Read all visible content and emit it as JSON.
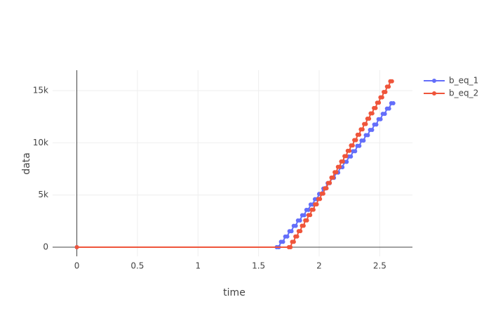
{
  "chart_data": {
    "type": "line",
    "xlabel": "time",
    "ylabel": "data",
    "xlim": [
      -0.2,
      2.77
    ],
    "ylim": [
      -875,
      16960
    ],
    "xticks": [
      0,
      0.5,
      1,
      1.5,
      2,
      2.5
    ],
    "yticks": [
      0,
      {
        "value": 5000,
        "label": "5k"
      },
      {
        "value": 10000,
        "label": "10k"
      },
      {
        "value": 15000,
        "label": "15k"
      }
    ],
    "grid": true,
    "legend": "right",
    "series": [
      {
        "name": "b_eq_1",
        "color": "#636efa",
        "x": [
          0,
          1.65,
          1.667,
          1.685,
          1.702,
          1.72,
          1.737,
          1.755,
          1.772,
          1.79,
          1.807,
          1.825,
          1.842,
          1.86,
          1.877,
          1.895,
          1.912,
          1.93,
          1.947,
          1.965,
          1.982,
          2.0,
          2.017,
          2.035,
          2.052,
          2.07,
          2.087,
          2.105,
          2.122,
          2.14,
          2.157,
          2.175,
          2.192,
          2.21,
          2.227,
          2.245,
          2.262,
          2.28,
          2.297,
          2.315,
          2.332,
          2.35,
          2.367,
          2.385,
          2.402,
          2.42,
          2.437,
          2.455,
          2.472,
          2.49,
          2.507,
          2.525,
          2.542,
          2.56,
          2.577,
          2.595,
          2.612
        ],
        "values": [
          0,
          0,
          0,
          511,
          511,
          1022,
          1022,
          1533,
          1533,
          2044,
          2044,
          2555,
          2555,
          3066,
          3066,
          3577,
          3577,
          4088,
          4088,
          4599,
          4599,
          5110,
          5110,
          5621,
          5621,
          6132,
          6132,
          6643,
          6643,
          7154,
          7154,
          7665,
          7665,
          8176,
          8176,
          8687,
          8687,
          9198,
          9198,
          9709,
          9709,
          10220,
          10220,
          10731,
          10731,
          11242,
          11242,
          11753,
          11753,
          12264,
          12264,
          12775,
          12775,
          13286,
          13286,
          13797,
          13797
        ]
      },
      {
        "name": "b_eq_2",
        "color": "#ef553b",
        "x": [
          0,
          1.75,
          1.764,
          1.777,
          1.791,
          1.804,
          1.818,
          1.831,
          1.845,
          1.858,
          1.872,
          1.885,
          1.899,
          1.912,
          1.926,
          1.939,
          1.953,
          1.966,
          1.98,
          1.993,
          2.007,
          2.02,
          2.034,
          2.047,
          2.061,
          2.074,
          2.088,
          2.101,
          2.115,
          2.128,
          2.142,
          2.155,
          2.169,
          2.182,
          2.196,
          2.209,
          2.223,
          2.236,
          2.25,
          2.263,
          2.277,
          2.29,
          2.304,
          2.317,
          2.331,
          2.344,
          2.358,
          2.371,
          2.385,
          2.398,
          2.412,
          2.425,
          2.439,
          2.452,
          2.466,
          2.479,
          2.493,
          2.506,
          2.52,
          2.533,
          2.547,
          2.56,
          2.574,
          2.587,
          2.601
        ],
        "values": [
          0,
          0,
          0,
          513,
          513,
          1026,
          1026,
          1539,
          1539,
          2052,
          2052,
          2565,
          2565,
          3078,
          3078,
          3591,
          3591,
          4104,
          4104,
          4617,
          4617,
          5130,
          5130,
          5643,
          5643,
          6156,
          6156,
          6669,
          6669,
          7182,
          7182,
          7695,
          7695,
          8208,
          8208,
          8721,
          8721,
          9234,
          9234,
          9747,
          9747,
          10260,
          10260,
          10773,
          10773,
          11286,
          11286,
          11799,
          11799,
          12312,
          12312,
          12825,
          12825,
          13338,
          13338,
          13851,
          13851,
          14364,
          14364,
          14877,
          14877,
          15390,
          15390,
          15903,
          15903
        ]
      }
    ]
  }
}
